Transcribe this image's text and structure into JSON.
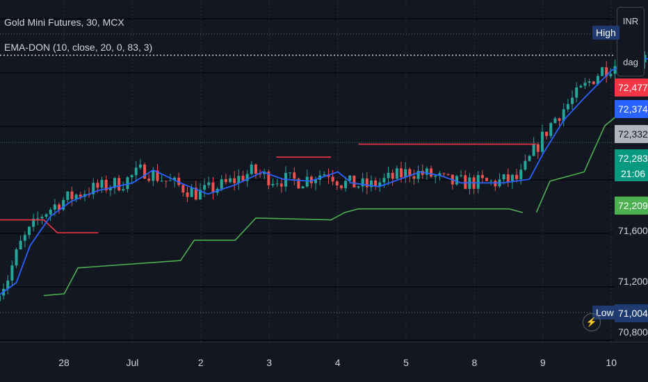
{
  "header": {
    "symbol": "Gold Mini Futures, 30, MCX",
    "indicator": "EMA-DON (10, close, 20, 0, 83, 3)"
  },
  "unit_menu": {
    "currency": "INR",
    "scale": "dag"
  },
  "labels": {
    "high": "High",
    "low": "Low"
  },
  "colors": {
    "background": "#131722",
    "grid": "#1f2230",
    "separator": "#2a2e39",
    "up": "#26a69a",
    "down": "#ef5350",
    "ema": "#2962ff",
    "don_upper": "#f23645",
    "don_lower": "#4caf50",
    "last_price_label": "#9598a1"
  },
  "chart_data": {
    "type": "candlestick",
    "x_ticks": [
      "28",
      "Jul",
      "2",
      "3",
      "4",
      "5",
      "8",
      "9",
      "10"
    ],
    "y_ticks": [
      {
        "value": 70800,
        "label": "70,800"
      },
      {
        "value": 71200,
        "label": "71,200"
      },
      {
        "value": 71600,
        "label": "71,600"
      }
    ],
    "ylim": [
      70780,
      72620
    ],
    "grid": true,
    "high_value": 72580,
    "low_value": 71004,
    "price_labels": [
      {
        "value": 72477,
        "label": "72,477",
        "color": "#f23645"
      },
      {
        "value": 72374,
        "label": "72,374",
        "color": "#2962ff"
      },
      {
        "value": 72332,
        "label": "72,332",
        "color": "#b2b5be"
      },
      {
        "value": 72283,
        "label": "72,283",
        "color": "#089981",
        "countdown": "21:06"
      },
      {
        "value": 72209,
        "label": "72,209",
        "color": "#4caf50"
      },
      {
        "value": 71004,
        "label": "71,004",
        "color": "#1e3a6e"
      }
    ],
    "current_price": 72332,
    "ema_price": 72374,
    "ema_path": [
      [
        0,
        71020
      ],
      [
        0.3,
        71100
      ],
      [
        0.5,
        71300
      ],
      [
        0.8,
        71460
      ],
      [
        1.1,
        71540
      ],
      [
        1.5,
        71600
      ],
      [
        2.0,
        71640
      ],
      [
        2.3,
        71710
      ],
      [
        2.7,
        71640
      ],
      [
        3.1,
        71580
      ],
      [
        3.5,
        71630
      ],
      [
        3.9,
        71700
      ],
      [
        4.2,
        71660
      ],
      [
        4.6,
        71650
      ],
      [
        5.0,
        71700
      ],
      [
        5.2,
        71640
      ],
      [
        5.6,
        71620
      ],
      [
        5.9,
        71660
      ],
      [
        6.2,
        71700
      ],
      [
        6.5,
        71680
      ],
      [
        6.8,
        71640
      ],
      [
        7.0,
        71640
      ],
      [
        7.4,
        71640
      ],
      [
        7.8,
        71660
      ],
      [
        8.0,
        71800
      ],
      [
        8.3,
        71980
      ],
      [
        8.6,
        72100
      ],
      [
        9.0,
        72250
      ],
      [
        9.4,
        72310
      ],
      [
        9.8,
        72320
      ],
      [
        10.3,
        72320
      ],
      [
        10.8,
        72310
      ],
      [
        11.3,
        72310
      ],
      [
        11.6,
        72300
      ],
      [
        11.9,
        72340
      ],
      [
        12.3,
        72380
      ],
      [
        12.6,
        72410
      ],
      [
        12.9,
        72440
      ],
      [
        13.1,
        72520
      ],
      [
        13.4,
        72660
      ],
      [
        13.7,
        72740
      ],
      [
        14.0,
        72760
      ],
      [
        14.3,
        72730
      ],
      [
        14.6,
        72700
      ],
      [
        14.9,
        72660
      ],
      [
        15.2,
        72650
      ],
      [
        15.4,
        72600
      ],
      [
        15.6,
        72490
      ],
      [
        15.9,
        72380
      ],
      [
        16.2,
        72370
      ],
      [
        16.5,
        72360
      ],
      [
        16.8,
        72350
      ],
      [
        17.1,
        72374
      ]
    ],
    "don_upper_segments": [
      [
        [
          0,
          71440
        ],
        [
          0.7,
          71440
        ],
        [
          0.9,
          71370
        ],
        [
          1.5,
          71370
        ]
      ],
      [
        [
          4.1,
          71780
        ],
        [
          4.9,
          71780
        ]
      ],
      [
        [
          5.3,
          71850
        ],
        [
          7.9,
          71850
        ]
      ],
      [
        [
          14.5,
          72910
        ],
        [
          15.5,
          72910
        ],
        [
          15.6,
          72300
        ]
      ],
      [
        [
          16.0,
          72250
        ],
        [
          17.1,
          72250
        ]
      ]
    ],
    "don_lower_segments": [
      [
        [
          0.7,
          71030
        ],
        [
          1.0,
          71040
        ],
        [
          1.2,
          71180
        ],
        [
          2.7,
          71220
        ],
        [
          2.9,
          71330
        ],
        [
          3.5,
          71330
        ],
        [
          3.8,
          71450
        ],
        [
          4.9,
          71440
        ],
        [
          5.1,
          71480
        ],
        [
          5.3,
          71500
        ],
        [
          6.8,
          71500
        ],
        [
          7.5,
          71500
        ],
        [
          7.7,
          71480
        ]
      ],
      [
        [
          7.9,
          71480
        ],
        [
          8.1,
          71650
        ],
        [
          8.6,
          71700
        ],
        [
          8.9,
          71950
        ],
        [
          9.1,
          72010
        ],
        [
          11.6,
          72010
        ],
        [
          11.8,
          72120
        ],
        [
          12.1,
          72150
        ],
        [
          12.5,
          72210
        ],
        [
          12.8,
          72250
        ],
        [
          13.0,
          72330
        ],
        [
          13.2,
          72440
        ],
        [
          13.5,
          72690
        ],
        [
          14.3,
          72700
        ],
        [
          14.5,
          72700
        ],
        [
          14.8,
          72690
        ],
        [
          15.1,
          72700
        ]
      ],
      [
        [
          15.8,
          72000
        ],
        [
          16.2,
          71990
        ],
        [
          16.5,
          72010
        ],
        [
          17.1,
          72010
        ]
      ]
    ]
  }
}
